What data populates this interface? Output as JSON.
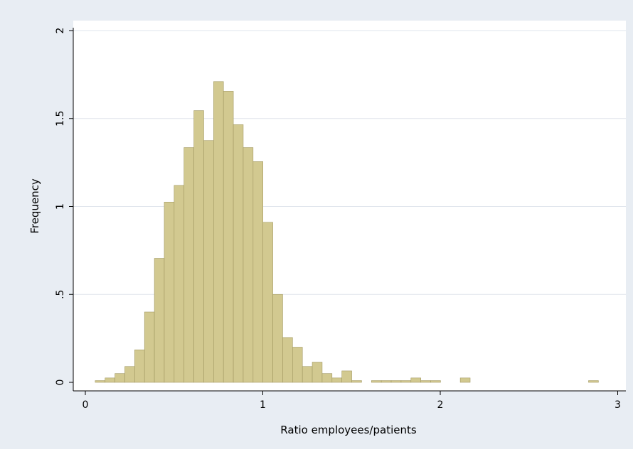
{
  "chart_data": {
    "type": "bar",
    "subtype": "histogram",
    "title": "",
    "xlabel": "Ratio employees/patients",
    "ylabel": "Frequency",
    "xlim": [
      0,
      3
    ],
    "ylim": [
      0,
      2
    ],
    "x_ticks": [
      "0",
      "1",
      "2",
      "3"
    ],
    "x_tick_values": [
      0,
      1,
      2,
      3
    ],
    "y_ticks": [
      "0",
      ".5",
      "1",
      "1.5",
      "2"
    ],
    "y_tick_values": [
      0,
      0.5,
      1,
      1.5,
      2
    ],
    "grid": "horizontal",
    "bin_width": 0.0556,
    "bin_start": 0.0556,
    "values": [
      0.01,
      0.025,
      0.05,
      0.09,
      0.185,
      0.4,
      0.705,
      1.025,
      1.12,
      1.335,
      1.545,
      1.375,
      1.71,
      1.655,
      1.465,
      1.335,
      1.255,
      0.91,
      0.5,
      0.255,
      0.2,
      0.09,
      0.115,
      0.05,
      0.025,
      0.065,
      0.01,
      0,
      0.01,
      0.01,
      0.01,
      0.01,
      0.025,
      0.01,
      0.01,
      0,
      0,
      0.025,
      0,
      0,
      0,
      0,
      0,
      0,
      0,
      0,
      0,
      0,
      0,
      0,
      0.01
    ],
    "colors": {
      "bar_fill": "#d2c990",
      "bar_stroke": "#a39a63",
      "background": "#e8edf3",
      "plot_bg": "#ffffff",
      "grid": "#dfe4ec"
    }
  }
}
